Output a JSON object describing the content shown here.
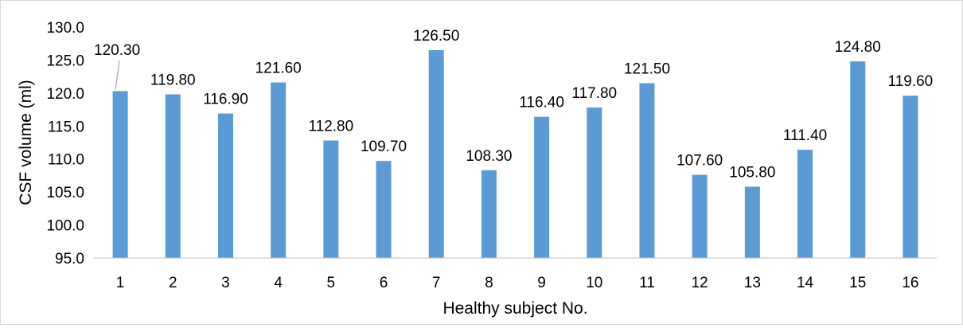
{
  "chart_data": {
    "type": "bar",
    "title": "",
    "xlabel": "Healthy subject No.",
    "ylabel": "CSF volume (ml)",
    "categories": [
      "1",
      "2",
      "3",
      "4",
      "5",
      "6",
      "7",
      "8",
      "9",
      "10",
      "11",
      "12",
      "13",
      "14",
      "15",
      "16"
    ],
    "values": [
      120.3,
      119.8,
      116.9,
      121.6,
      112.8,
      109.7,
      126.5,
      108.3,
      116.4,
      117.8,
      121.5,
      107.6,
      105.8,
      111.4,
      124.8,
      119.6
    ],
    "data_labels": [
      "120.30",
      "119.80",
      "116.90",
      "121.60",
      "112.80",
      "109.70",
      "126.50",
      "108.30",
      "116.40",
      "117.80",
      "121.50",
      "107.60",
      "105.80",
      "111.40",
      "124.80",
      "119.60"
    ],
    "ylim": [
      95,
      130
    ],
    "yticks": [
      "95.0",
      "100.0",
      "105.0",
      "110.0",
      "115.0",
      "120.0",
      "125.0",
      "130.0"
    ],
    "grid": false,
    "legend": "none",
    "bar_color": "#5b9bd5",
    "axis_color": "#bfbfbf"
  }
}
